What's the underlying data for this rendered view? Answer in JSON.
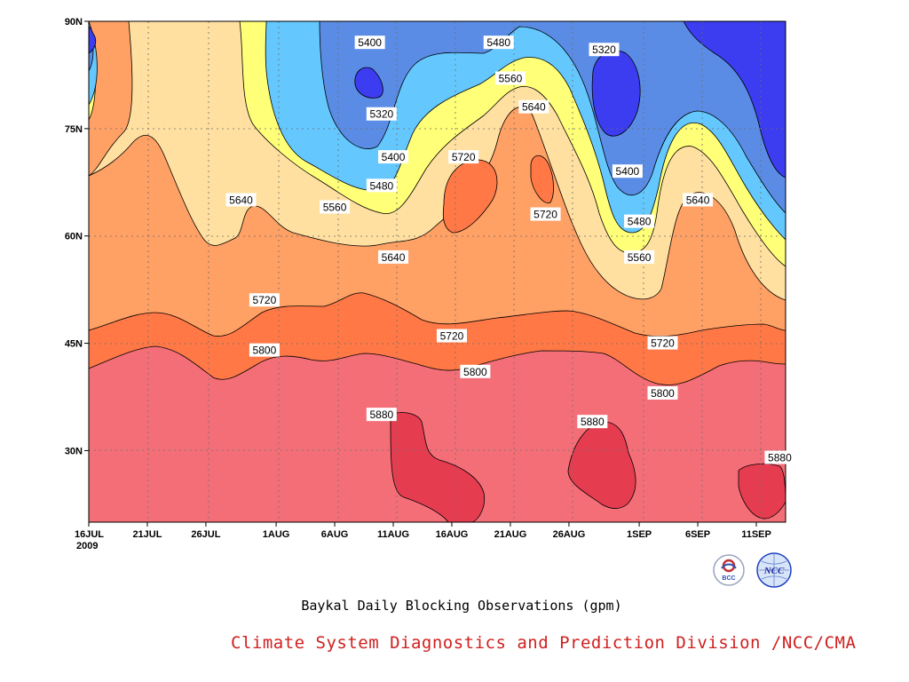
{
  "chart_data": {
    "type": "heatmap",
    "subtype": "filled-contour (latitude-time Hovmoller)",
    "title": "Baykal Daily Blocking Observations (gpm)",
    "xlabel": "",
    "ylabel": "",
    "x_ticks": [
      "16JUL",
      "21JUL",
      "26JUL",
      "1AUG",
      "6AUG",
      "11AUG",
      "16AUG",
      "21AUG",
      "26AUG",
      "1SEP",
      "6SEP",
      "11SEP"
    ],
    "x_year_label": "2009",
    "y_ticks": [
      "30N",
      "45N",
      "60N",
      "75N",
      "90N"
    ],
    "ylim": [
      20,
      90
    ],
    "contour_levels": [
      5320,
      5400,
      5480,
      5560,
      5640,
      5720,
      5800,
      5880
    ],
    "contour_labels": [
      {
        "value": 5400,
        "x_date": "9AUG",
        "lat": 87
      },
      {
        "value": 5320,
        "x_date": "10AUG",
        "lat": 77
      },
      {
        "value": 5480,
        "x_date": "20AUG",
        "lat": 87
      },
      {
        "value": 5560,
        "x_date": "21AUG",
        "lat": 82
      },
      {
        "value": 5320,
        "x_date": "29AUG",
        "lat": 86
      },
      {
        "value": 5640,
        "x_date": "23AUG",
        "lat": 78
      },
      {
        "value": 5720,
        "x_date": "17AUG",
        "lat": 71
      },
      {
        "value": 5400,
        "x_date": "11AUG",
        "lat": 71
      },
      {
        "value": 5480,
        "x_date": "10AUG",
        "lat": 67
      },
      {
        "value": 5640,
        "x_date": "29JUL",
        "lat": 65
      },
      {
        "value": 5560,
        "x_date": "6AUG",
        "lat": 64
      },
      {
        "value": 5720,
        "x_date": "24AUG",
        "lat": 63
      },
      {
        "value": 5400,
        "x_date": "31AUG",
        "lat": 69
      },
      {
        "value": 5480,
        "x_date": "1SEP",
        "lat": 62
      },
      {
        "value": 5640,
        "x_date": "6SEP",
        "lat": 65
      },
      {
        "value": 5560,
        "x_date": "1SEP",
        "lat": 57
      },
      {
        "value": 5640,
        "x_date": "11AUG",
        "lat": 57
      },
      {
        "value": 5720,
        "x_date": "31JUL",
        "lat": 51
      },
      {
        "value": 5720,
        "x_date": "16AUG",
        "lat": 46
      },
      {
        "value": 5720,
        "x_date": "3SEP",
        "lat": 45
      },
      {
        "value": 5800,
        "x_date": "31JUL",
        "lat": 44
      },
      {
        "value": 5800,
        "x_date": "18AUG",
        "lat": 41
      },
      {
        "value": 5800,
        "x_date": "3SEP",
        "lat": 38
      },
      {
        "value": 5880,
        "x_date": "10AUG",
        "lat": 35
      },
      {
        "value": 5880,
        "x_date": "28AUG",
        "lat": 34
      },
      {
        "value": 5880,
        "x_date": "13SEP",
        "lat": 29
      }
    ],
    "fill_colors": {
      "below_5320": "#3c3cf0",
      "5320_5400": "#5a8ce6",
      "5400_5480": "#64c8ff",
      "5480_5560": "#ffff78",
      "5560_5640": "#ffe0a0",
      "5640_5720": "#ffa064",
      "5720_5800": "#ff7846",
      "5800_5880": "#f46e78",
      "above_5880": "#e63c50"
    },
    "grid": true
  },
  "footer": {
    "caption": "Baykal Daily Blocking Observations (gpm)",
    "credit": "Climate System Diagnostics and Prediction Division /NCC/CMA",
    "logo_left_text": "BCC",
    "logo_right_text": "NCC"
  }
}
